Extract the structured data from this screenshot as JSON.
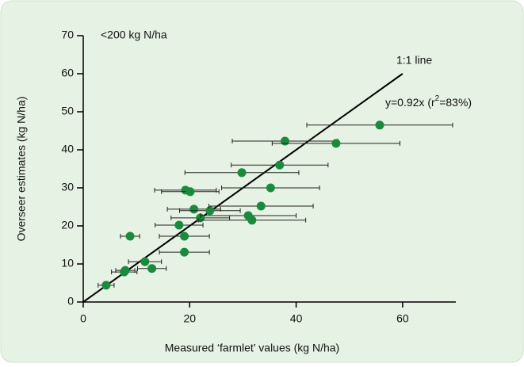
{
  "chart_data": {
    "type": "scatter",
    "annotation": "<200 kg N/ha",
    "line_label": "1:1 line",
    "fit_label": {
      "main": "y=0.92x (r",
      "sup": "2",
      "tail": "=83%)"
    },
    "x_label": "Measured ‘farmlet’ values (kg N/ha)",
    "y_label": "Overseer estimates (kg N/ha)",
    "xlim": [
      0,
      70
    ],
    "ylim": [
      0,
      70
    ],
    "xticks": [
      0,
      20,
      40,
      60
    ],
    "yticks": [
      0,
      10,
      20,
      30,
      40,
      50,
      60,
      70
    ],
    "color": "#1a8a3c",
    "x": [
      4.3,
      7.7,
      7.9,
      11.6,
      12.9,
      8.8,
      19.0,
      19.0,
      18.0,
      20.8,
      22.0,
      23.8,
      19.2,
      20.1,
      29.8,
      35.2,
      33.4,
      31.0,
      31.7,
      36.9,
      37.9,
      47.5,
      55.7
    ],
    "y": [
      4.4,
      7.9,
      8.3,
      10.6,
      8.8,
      17.3,
      13.1,
      17.3,
      20.2,
      24.4,
      22.1,
      24.0,
      29.4,
      29.0,
      34.0,
      30.0,
      25.2,
      22.7,
      21.5,
      36.0,
      42.3,
      41.7,
      46.5
    ],
    "xerr": [
      1.5,
      2.4,
      1.8,
      3.1,
      2.7,
      1.8,
      4.7,
      4.7,
      4.5,
      5.0,
      5.5,
      5.7,
      5.8,
      5.4,
      10.7,
      9.2,
      9.8,
      9.0,
      10.1,
      9.1,
      9.9,
      12.0,
      13.7
    ],
    "one_to_one": {
      "x": [
        0,
        60
      ],
      "y": [
        0,
        60
      ]
    }
  }
}
